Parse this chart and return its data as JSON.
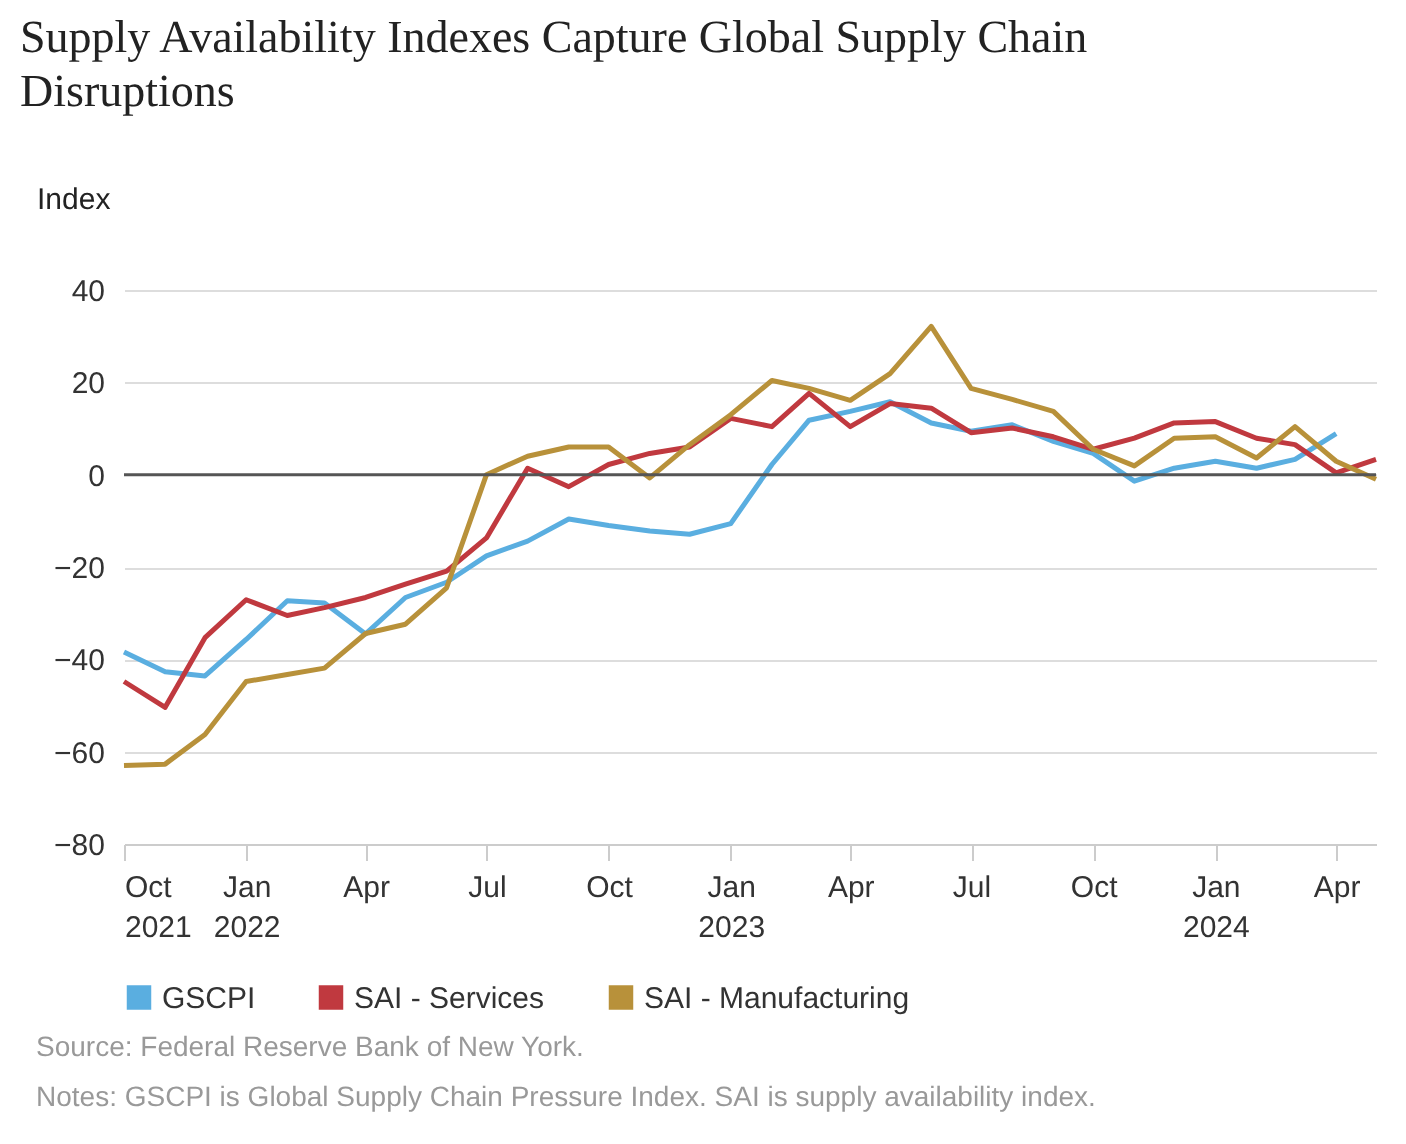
{
  "chart_data": {
    "type": "line",
    "title": "Supply Availability Indexes Capture Global Supply Chain Disruptions",
    "ylabel": "Index",
    "x": [
      "2021-10",
      "2021-11",
      "2021-12",
      "2022-01",
      "2022-02",
      "2022-03",
      "2022-04",
      "2022-05",
      "2022-06",
      "2022-07",
      "2022-08",
      "2022-09",
      "2022-10",
      "2022-11",
      "2022-12",
      "2023-01",
      "2023-02",
      "2023-03",
      "2023-04",
      "2023-05",
      "2023-06",
      "2023-07",
      "2023-08",
      "2023-09",
      "2023-10",
      "2023-11",
      "2023-12",
      "2024-01",
      "2024-02",
      "2024-03",
      "2024-04",
      "2024-05"
    ],
    "series": [
      {
        "name": "GSCPI",
        "color": "#5aaee0",
        "values": [
          -38.4,
          -42.7,
          -43.6,
          -35.7,
          -27.3,
          -27.8,
          -34.5,
          -26.6,
          -23.3,
          -17.6,
          -14.4,
          -9.6,
          -11,
          -12.2,
          -12.9,
          -10.6,
          2.2,
          11.8,
          13.7,
          15.8,
          11.2,
          9.4,
          10.8,
          7.2,
          4.6,
          -1.4,
          1.4,
          2.9,
          1.4,
          3.3,
          8.9,
          null
        ]
      },
      {
        "name": "SAI - Services",
        "color": "#c0393f",
        "values": [
          -44.8,
          -50.4,
          -35.3,
          -27.1,
          -30.5,
          -28.8,
          -26.6,
          -23.7,
          -20.9,
          -13.7,
          1.4,
          -2.6,
          2.2,
          4.6,
          6,
          12.2,
          10.4,
          17.6,
          10.4,
          15.4,
          14.4,
          9.1,
          10.1,
          8.2,
          5.5,
          7.9,
          11.2,
          11.5,
          7.9,
          6.5,
          0.4,
          3.3
        ]
      },
      {
        "name": "SAI - Manufacturing",
        "color": "#b8913a",
        "values": [
          -63,
          -62.7,
          -56.3,
          -44.8,
          -43.3,
          -41.9,
          -34.4,
          -32.4,
          -24.5,
          0,
          4,
          6,
          6,
          -0.7,
          6.5,
          13,
          20.4,
          18.7,
          16.1,
          21.9,
          32.1,
          18.7,
          16.3,
          13.7,
          5.5,
          1.9,
          7.9,
          8.2,
          3.6,
          10.4,
          2.9,
          -1
        ]
      }
    ],
    "xlim": [
      "2021-10",
      "2024-05"
    ],
    "xticks": [
      {
        "value": "2021-10",
        "label": "Oct 2021"
      },
      {
        "value": "2022-01",
        "label": "Jan 2022"
      },
      {
        "value": "2022-04",
        "label": "Apr"
      },
      {
        "value": "2022-07",
        "label": "Jul"
      },
      {
        "value": "2022-10",
        "label": "Oct"
      },
      {
        "value": "2023-01",
        "label": "Jan 2023"
      },
      {
        "value": "2023-04",
        "label": "Apr"
      },
      {
        "value": "2023-07",
        "label": "Jul"
      },
      {
        "value": "2023-10",
        "label": "Oct"
      },
      {
        "value": "2024-01",
        "label": "Jan 2024"
      },
      {
        "value": "2024-04",
        "label": "Apr"
      }
    ],
    "ylim": [
      -80,
      40
    ],
    "yticks": [
      -80,
      -60,
      -40,
      -20,
      0,
      20,
      40
    ],
    "ref_lines": [
      {
        "axis": "y",
        "value": 0,
        "color": "#555555"
      }
    ],
    "grid": "y",
    "legend": "bottom",
    "marker": "none",
    "line_style": "solid",
    "annotations": [
      "Source: Federal Reserve Bank of New York.",
      "Notes: GSCPI is Global Supply Chain Pressure Index. SAI is supply availability index."
    ]
  }
}
